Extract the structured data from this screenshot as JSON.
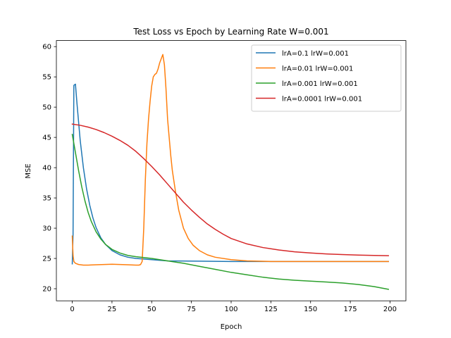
{
  "chart_data": {
    "type": "line",
    "title": "Test Loss vs Epoch by Learning Rate W=0.001",
    "xlabel": "Epoch",
    "ylabel": "MSE",
    "xlim": [
      -10,
      210
    ],
    "ylim": [
      18,
      61
    ],
    "xticks": [
      0,
      25,
      50,
      75,
      100,
      125,
      150,
      175,
      200
    ],
    "yticks": [
      20,
      25,
      30,
      35,
      40,
      45,
      50,
      55,
      60
    ],
    "grid": false,
    "legend_position": "top-right",
    "series": [
      {
        "name": "lrA=0.1 lrW=0.001",
        "color": "#1f77b4",
        "points": [
          [
            0,
            24.1
          ],
          [
            0.5,
            29.0
          ],
          [
            1,
            53.6
          ],
          [
            2,
            53.8
          ],
          [
            3,
            50.5
          ],
          [
            5,
            44.5
          ],
          [
            7,
            40.0
          ],
          [
            9,
            36.5
          ],
          [
            11,
            33.8
          ],
          [
            13,
            31.7
          ],
          [
            15,
            30.1
          ],
          [
            18,
            28.4
          ],
          [
            21,
            27.3
          ],
          [
            25,
            26.3
          ],
          [
            30,
            25.6
          ],
          [
            35,
            25.2
          ],
          [
            40,
            25.0
          ],
          [
            50,
            24.8
          ],
          [
            60,
            24.6
          ],
          [
            80,
            24.55
          ],
          [
            100,
            24.5
          ],
          [
            150,
            24.5
          ],
          [
            199,
            24.5
          ]
        ]
      },
      {
        "name": "lrA=0.01 lrW=0.001",
        "color": "#ff7f0e",
        "points": [
          [
            0,
            28.7
          ],
          [
            0.5,
            25.5
          ],
          [
            1,
            24.5
          ],
          [
            2,
            24.2
          ],
          [
            4,
            24.0
          ],
          [
            7,
            23.9
          ],
          [
            10,
            23.9
          ],
          [
            15,
            23.95
          ],
          [
            20,
            24.0
          ],
          [
            25,
            24.05
          ],
          [
            30,
            24.0
          ],
          [
            35,
            23.95
          ],
          [
            40,
            23.9
          ],
          [
            42,
            23.9
          ],
          [
            43,
            24.0
          ],
          [
            44,
            24.5
          ],
          [
            45,
            30.0
          ],
          [
            46,
            38.0
          ],
          [
            47,
            44.0
          ],
          [
            48,
            48.0
          ],
          [
            49,
            51.0
          ],
          [
            50,
            53.5
          ],
          [
            51,
            55.0
          ],
          [
            52,
            55.4
          ],
          [
            53,
            55.6
          ],
          [
            54,
            56.3
          ],
          [
            55,
            57.3
          ],
          [
            56,
            58.0
          ],
          [
            57,
            58.7
          ],
          [
            58,
            57.0
          ],
          [
            59,
            53.0
          ],
          [
            60,
            48.0
          ],
          [
            61,
            45.0
          ],
          [
            62,
            42.0
          ],
          [
            63,
            39.5
          ],
          [
            65,
            36.0
          ],
          [
            67,
            33.0
          ],
          [
            70,
            30.0
          ],
          [
            73,
            28.3
          ],
          [
            76,
            27.2
          ],
          [
            80,
            26.3
          ],
          [
            85,
            25.6
          ],
          [
            90,
            25.2
          ],
          [
            100,
            24.8
          ],
          [
            110,
            24.6
          ],
          [
            125,
            24.5
          ],
          [
            150,
            24.5
          ],
          [
            199,
            24.5
          ]
        ]
      },
      {
        "name": "lrA=0.001 lrW=0.001",
        "color": "#2ca02c",
        "points": [
          [
            0,
            45.5
          ],
          [
            2,
            42.5
          ],
          [
            4,
            39.5
          ],
          [
            6,
            36.8
          ],
          [
            8,
            34.5
          ],
          [
            10,
            32.6
          ],
          [
            12,
            31.1
          ],
          [
            15,
            29.4
          ],
          [
            18,
            28.2
          ],
          [
            21,
            27.3
          ],
          [
            25,
            26.5
          ],
          [
            30,
            25.9
          ],
          [
            35,
            25.5
          ],
          [
            40,
            25.3
          ],
          [
            50,
            25.0
          ],
          [
            60,
            24.6
          ],
          [
            70,
            24.2
          ],
          [
            80,
            23.7
          ],
          [
            90,
            23.2
          ],
          [
            100,
            22.7
          ],
          [
            110,
            22.3
          ],
          [
            120,
            21.9
          ],
          [
            130,
            21.6
          ],
          [
            140,
            21.4
          ],
          [
            150,
            21.25
          ],
          [
            160,
            21.1
          ],
          [
            170,
            20.95
          ],
          [
            180,
            20.7
          ],
          [
            190,
            20.35
          ],
          [
            199,
            19.9
          ]
        ]
      },
      {
        "name": "lrA=0.0001 lrW=0.001",
        "color": "#d62728",
        "points": [
          [
            0,
            47.2
          ],
          [
            5,
            47.0
          ],
          [
            10,
            46.7
          ],
          [
            15,
            46.3
          ],
          [
            20,
            45.8
          ],
          [
            25,
            45.2
          ],
          [
            30,
            44.5
          ],
          [
            35,
            43.7
          ],
          [
            40,
            42.7
          ],
          [
            45,
            41.5
          ],
          [
            50,
            40.2
          ],
          [
            55,
            38.8
          ],
          [
            60,
            37.3
          ],
          [
            65,
            35.8
          ],
          [
            70,
            34.3
          ],
          [
            75,
            33.0
          ],
          [
            80,
            31.8
          ],
          [
            85,
            30.7
          ],
          [
            90,
            29.8
          ],
          [
            95,
            29.0
          ],
          [
            100,
            28.3
          ],
          [
            110,
            27.4
          ],
          [
            120,
            26.8
          ],
          [
            130,
            26.4
          ],
          [
            140,
            26.1
          ],
          [
            150,
            25.9
          ],
          [
            160,
            25.75
          ],
          [
            170,
            25.65
          ],
          [
            180,
            25.55
          ],
          [
            190,
            25.5
          ],
          [
            199,
            25.45
          ]
        ]
      }
    ]
  }
}
